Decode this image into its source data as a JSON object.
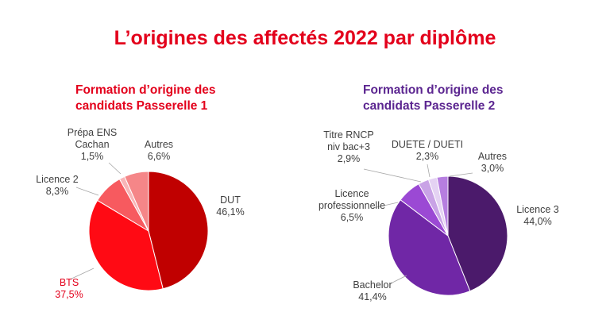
{
  "title": "L’origines des affectés 2022 par diplôme",
  "colors": {
    "title": "#e3001b",
    "chart1_title": "#e3001b",
    "chart2_title": "#5b2590",
    "label": "#404040",
    "bts_label": "#e3001b"
  },
  "chart_data": [
    {
      "type": "pie",
      "title_lines": [
        "Formation d’origine des",
        "candidats Passerelle 1"
      ],
      "slices": [
        {
          "label_lines": [
            "DUT"
          ],
          "value_text": "46,1%",
          "value": 46.1,
          "color": "#c00000",
          "label_color": "#404040"
        },
        {
          "label_lines": [
            "BTS"
          ],
          "value_text": "37,5%",
          "value": 37.5,
          "color": "#ff0a14",
          "label_color": "#e3001b"
        },
        {
          "label_lines": [
            "Licence 2"
          ],
          "value_text": "8,3%",
          "value": 8.3,
          "color": "#f75a5f",
          "label_color": "#404040"
        },
        {
          "label_lines": [
            "Prépa ENS",
            "Cachan"
          ],
          "value_text": "1,5%",
          "value": 1.5,
          "color": "#f8b5b7",
          "label_color": "#404040"
        },
        {
          "label_lines": [
            "Autres"
          ],
          "value_text": "6,6%",
          "value": 6.6,
          "color": "#f58688",
          "label_color": "#404040"
        }
      ]
    },
    {
      "type": "pie",
      "title_lines": [
        "Formation d’origine des",
        "candidats Passerelle 2"
      ],
      "slices": [
        {
          "label_lines": [
            "Licence 3"
          ],
          "value_text": "44,0%",
          "value": 44.0,
          "color": "#4b1a6b",
          "label_color": "#404040"
        },
        {
          "label_lines": [
            "Bachelor"
          ],
          "value_text": "41,4%",
          "value": 41.4,
          "color": "#7027a6",
          "label_color": "#404040"
        },
        {
          "label_lines": [
            "Licence",
            "professionnelle"
          ],
          "value_text": "6,5%",
          "value": 6.5,
          "color": "#9b49d4",
          "label_color": "#404040"
        },
        {
          "label_lines": [
            "Titre RNCP",
            "niv bac+3"
          ],
          "value_text": "2,9%",
          "value": 2.9,
          "color": "#c9a3e6",
          "label_color": "#404040"
        },
        {
          "label_lines": [
            "DUETE / DUETI"
          ],
          "value_text": "2,3%",
          "value": 2.3,
          "color": "#e4d2f3",
          "label_color": "#404040"
        },
        {
          "label_lines": [
            "Autres"
          ],
          "value_text": "3,0%",
          "value": 3.0,
          "color": "#b67ee0",
          "label_color": "#404040"
        }
      ]
    }
  ]
}
